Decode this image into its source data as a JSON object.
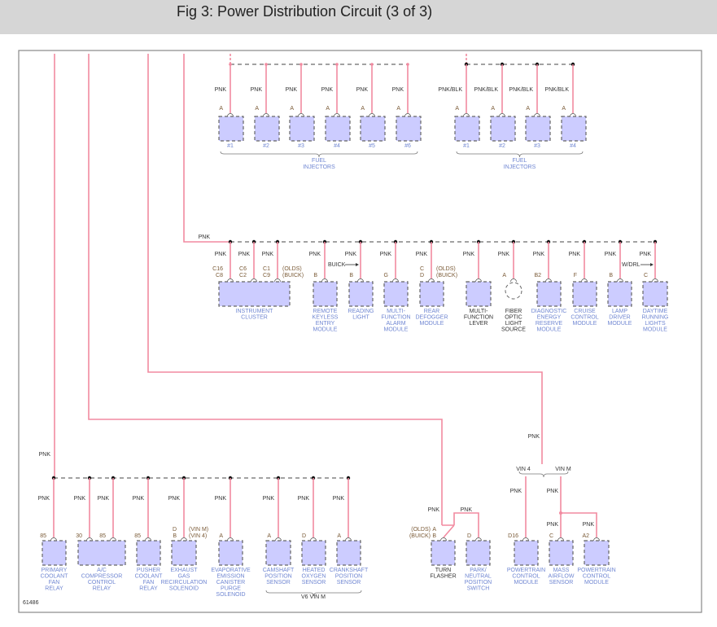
{
  "title": "Fig 3: Power Distribution Circuit (3 of 3)",
  "figure_id": "61486",
  "colors": {
    "wire": "#f28aa0",
    "component_fill": "#ccccff",
    "link_text": "#6f86d2"
  },
  "injectors_v6": {
    "bus_node_color": "pink",
    "items": [
      {
        "wire": "PNK",
        "pin": "A",
        "name": "#1"
      },
      {
        "wire": "PNK",
        "pin": "A",
        "name": "#2"
      },
      {
        "wire": "PNK",
        "pin": "A",
        "name": "#3"
      },
      {
        "wire": "PNK",
        "pin": "A",
        "name": "#4"
      },
      {
        "wire": "PNK",
        "pin": "A",
        "name": "#5"
      },
      {
        "wire": "PNK",
        "pin": "A",
        "name": "#6"
      }
    ],
    "group_label": [
      "FUEL",
      "INJECTORS"
    ]
  },
  "injectors_l4": {
    "bus_node_color": "black",
    "items": [
      {
        "wire": "PNK/BLK",
        "pin": "A",
        "name": "#1"
      },
      {
        "wire": "PNK/BLK",
        "pin": "A",
        "name": "#2"
      },
      {
        "wire": "PNK/BLK",
        "pin": "A",
        "name": "#3"
      },
      {
        "wire": "PNK/BLK",
        "pin": "A",
        "name": "#4"
      }
    ],
    "group_label": [
      "FUEL",
      "INJECTORS"
    ]
  },
  "middle": {
    "feed_wire": "PNK",
    "components": [
      {
        "name": [
          "INSTRUMENT",
          "CLUSTER"
        ],
        "link": true,
        "pins": [
          {
            "wire": "PNK",
            "pin": [
              "C16",
              "C8"
            ]
          },
          {
            "wire": "PNK",
            "pin": [
              "C6",
              "C2"
            ]
          },
          {
            "wire": "PNK",
            "pin": [
              "C1",
              "C9"
            ]
          }
        ],
        "note": [
          "(OLDS)",
          "(BUICK)"
        ]
      },
      {
        "name": [
          "REMOTE",
          "KEYLESS",
          "ENTRY",
          "MODULE"
        ],
        "link": true,
        "pins": [
          {
            "wire": "PNK",
            "pin": [
              "B"
            ]
          }
        ]
      },
      {
        "name": [
          "READING",
          "LIGHT"
        ],
        "link": true,
        "pins": [
          {
            "wire": "PNK",
            "pin": [
              "B"
            ]
          }
        ],
        "arrow_note": "BUICK"
      },
      {
        "name": [
          "MULTI-",
          "FUNCTION",
          "ALARM",
          "MODULE"
        ],
        "link": true,
        "pins": [
          {
            "wire": "PNK",
            "pin": [
              "G"
            ]
          }
        ]
      },
      {
        "name": [
          "REAR",
          "DEFOGGER",
          "MODULE"
        ],
        "link": true,
        "pins": [
          {
            "wire": "PNK",
            "pin": [
              "C",
              "D"
            ]
          }
        ],
        "note": [
          "(OLDS)",
          "(BUICK)"
        ]
      },
      {
        "name": [
          "MULTI-",
          "FUNCTION",
          "LEVER"
        ],
        "link": false,
        "pins": [
          {
            "wire": "PNK",
            "pin": []
          }
        ]
      },
      {
        "name": [
          "FIBER",
          "OPTIC",
          "LIGHT",
          "SOURCE"
        ],
        "link": false,
        "shape": "circle",
        "pins": [
          {
            "wire": "PNK",
            "pin": [
              "A"
            ]
          }
        ]
      },
      {
        "name": [
          "DIAGNOSTIC",
          "ENERGY",
          "RESERVE",
          "MODULE"
        ],
        "link": true,
        "pins": [
          {
            "wire": "PNK",
            "pin": [
              "B2"
            ]
          }
        ]
      },
      {
        "name": [
          "CRUISE",
          "CONTROL",
          "MODULE"
        ],
        "link": true,
        "pins": [
          {
            "wire": "PNK",
            "pin": [
              "F"
            ]
          }
        ]
      },
      {
        "name": [
          "LAMP",
          "DRIVER",
          "MODULE"
        ],
        "link": true,
        "pins": [
          {
            "wire": "PNK",
            "pin": [
              "B"
            ]
          }
        ]
      },
      {
        "name": [
          "DAYTIME",
          "RUNNING",
          "LIGHTS",
          "MODULE"
        ],
        "link": true,
        "pins": [
          {
            "wire": "PNK",
            "pin": [
              "C"
            ]
          }
        ],
        "arrow_note": "W/DRL"
      }
    ]
  },
  "bottom": {
    "feed_wire": "PNK",
    "components": [
      {
        "name": [
          "PRIMARY",
          "COOLANT",
          "FAN",
          "RELAY"
        ],
        "link": true,
        "pins": [
          {
            "wire": "PNK",
            "pin": [
              "85"
            ]
          }
        ]
      },
      {
        "name": [
          "A/C",
          "COMPRESSOR",
          "CONTROL",
          "RELAY"
        ],
        "link": true,
        "pins": [
          {
            "wire": "PNK",
            "pin": [
              "30"
            ]
          },
          {
            "wire": "PNK",
            "pin": [
              "85"
            ]
          }
        ]
      },
      {
        "name": [
          "PUSHER",
          "COOLANT",
          "FAN",
          "RELAY"
        ],
        "link": true,
        "pins": [
          {
            "wire": "PNK",
            "pin": [
              "85"
            ]
          }
        ]
      },
      {
        "name": [
          "EXHAUST",
          "GAS",
          "RECIRCULATION",
          "SOLENOID"
        ],
        "link": true,
        "pins": [
          {
            "wire": "PNK",
            "pin": [
              "D",
              "B"
            ]
          }
        ],
        "note": [
          "(VIN M)",
          "(VIN 4)"
        ]
      },
      {
        "name": [
          "EVAPORATIVE",
          "EMISSION",
          "CANISTER",
          "PURGE",
          "SOLENOID"
        ],
        "link": true,
        "pins": [
          {
            "wire": "PNK",
            "pin": [
              "A"
            ]
          }
        ]
      },
      {
        "name": [
          "CAMSHAFT",
          "POSITION",
          "SENSOR"
        ],
        "link": true,
        "pins": [
          {
            "wire": "PNK",
            "pin": [
              "A"
            ]
          }
        ]
      },
      {
        "name": [
          "HEATED",
          "OXYGEN",
          "SENSOR"
        ],
        "link": true,
        "pins": [
          {
            "wire": "PNK",
            "pin": [
              "D"
            ]
          }
        ]
      },
      {
        "name": [
          "CRANKSHAFT",
          "POSITION",
          "SENSOR"
        ],
        "link": true,
        "pins": [
          {
            "wire": "PNK",
            "pin": [
              "A"
            ]
          }
        ]
      }
    ],
    "group_label": "V6 VIN M"
  },
  "right": {
    "trunk_wire": "PNK",
    "variants": [
      "VIN 4",
      "VIN M"
    ],
    "components": [
      {
        "name": [
          "TURN",
          "FLASHER"
        ],
        "link": false,
        "pins": [
          {
            "wire": "PNK",
            "pin": [
              "A",
              "B"
            ]
          }
        ],
        "note": [
          "(OLDS)",
          "(BUICK)"
        ]
      },
      {
        "name": [
          "PARK/",
          "NEUTRAL",
          "POSITION",
          "SWITCH"
        ],
        "link": true,
        "pins": [
          {
            "wire": "PNK",
            "pin": [
              "D"
            ]
          }
        ]
      },
      {
        "name": [
          "POWERTRAIN",
          "CONTROL",
          "MODULE"
        ],
        "link": true,
        "pins": [
          {
            "wire": "PNK",
            "pin": [
              "D16"
            ]
          }
        ]
      },
      {
        "name": [
          "MASS",
          "AIRFLOW",
          "SENSOR"
        ],
        "link": true,
        "pins": [
          {
            "wire": "PNK",
            "pin": [
              "C"
            ]
          }
        ]
      },
      {
        "name": [
          "POWERTRAIN",
          "CONTROL",
          "MODULE"
        ],
        "link": true,
        "pins": [
          {
            "wire": "PNK",
            "pin": [
              "A2"
            ]
          }
        ]
      }
    ]
  }
}
